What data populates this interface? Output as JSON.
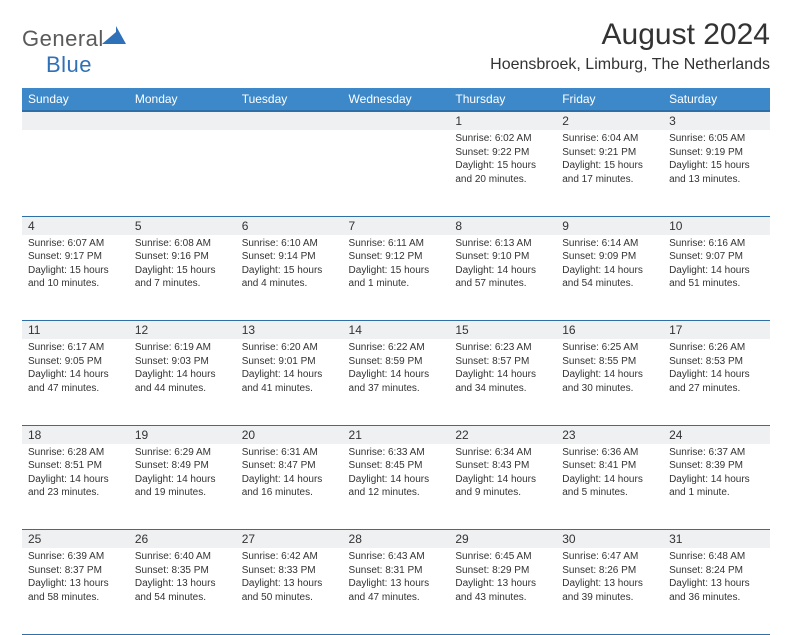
{
  "brand": {
    "part1": "General",
    "part2": "Blue"
  },
  "title": "August 2024",
  "location": "Hoensbroek, Limburg, The Netherlands",
  "colors": {
    "header_bg": "#3d88c9",
    "header_border": "#2f6fa8",
    "row_border": "#2f6fa8",
    "daynum_bg": "#eef0f2",
    "text": "#333333",
    "brand_gray": "#5a5a5a",
    "brand_blue": "#2f71b8",
    "background": "#ffffff"
  },
  "typography": {
    "title_fontsize": 30,
    "location_fontsize": 16,
    "header_fontsize": 12,
    "daynum_fontsize": 12,
    "details_fontsize": 10
  },
  "day_headers": [
    "Sunday",
    "Monday",
    "Tuesday",
    "Wednesday",
    "Thursday",
    "Friday",
    "Saturday"
  ],
  "weeks": [
    [
      {
        "n": "",
        "sunrise": "",
        "sunset": "",
        "daylight": ""
      },
      {
        "n": "",
        "sunrise": "",
        "sunset": "",
        "daylight": ""
      },
      {
        "n": "",
        "sunrise": "",
        "sunset": "",
        "daylight": ""
      },
      {
        "n": "",
        "sunrise": "",
        "sunset": "",
        "daylight": ""
      },
      {
        "n": "1",
        "sunrise": "Sunrise: 6:02 AM",
        "sunset": "Sunset: 9:22 PM",
        "daylight": "Daylight: 15 hours and 20 minutes."
      },
      {
        "n": "2",
        "sunrise": "Sunrise: 6:04 AM",
        "sunset": "Sunset: 9:21 PM",
        "daylight": "Daylight: 15 hours and 17 minutes."
      },
      {
        "n": "3",
        "sunrise": "Sunrise: 6:05 AM",
        "sunset": "Sunset: 9:19 PM",
        "daylight": "Daylight: 15 hours and 13 minutes."
      }
    ],
    [
      {
        "n": "4",
        "sunrise": "Sunrise: 6:07 AM",
        "sunset": "Sunset: 9:17 PM",
        "daylight": "Daylight: 15 hours and 10 minutes."
      },
      {
        "n": "5",
        "sunrise": "Sunrise: 6:08 AM",
        "sunset": "Sunset: 9:16 PM",
        "daylight": "Daylight: 15 hours and 7 minutes."
      },
      {
        "n": "6",
        "sunrise": "Sunrise: 6:10 AM",
        "sunset": "Sunset: 9:14 PM",
        "daylight": "Daylight: 15 hours and 4 minutes."
      },
      {
        "n": "7",
        "sunrise": "Sunrise: 6:11 AM",
        "sunset": "Sunset: 9:12 PM",
        "daylight": "Daylight: 15 hours and 1 minute."
      },
      {
        "n": "8",
        "sunrise": "Sunrise: 6:13 AM",
        "sunset": "Sunset: 9:10 PM",
        "daylight": "Daylight: 14 hours and 57 minutes."
      },
      {
        "n": "9",
        "sunrise": "Sunrise: 6:14 AM",
        "sunset": "Sunset: 9:09 PM",
        "daylight": "Daylight: 14 hours and 54 minutes."
      },
      {
        "n": "10",
        "sunrise": "Sunrise: 6:16 AM",
        "sunset": "Sunset: 9:07 PM",
        "daylight": "Daylight: 14 hours and 51 minutes."
      }
    ],
    [
      {
        "n": "11",
        "sunrise": "Sunrise: 6:17 AM",
        "sunset": "Sunset: 9:05 PM",
        "daylight": "Daylight: 14 hours and 47 minutes."
      },
      {
        "n": "12",
        "sunrise": "Sunrise: 6:19 AM",
        "sunset": "Sunset: 9:03 PM",
        "daylight": "Daylight: 14 hours and 44 minutes."
      },
      {
        "n": "13",
        "sunrise": "Sunrise: 6:20 AM",
        "sunset": "Sunset: 9:01 PM",
        "daylight": "Daylight: 14 hours and 41 minutes."
      },
      {
        "n": "14",
        "sunrise": "Sunrise: 6:22 AM",
        "sunset": "Sunset: 8:59 PM",
        "daylight": "Daylight: 14 hours and 37 minutes."
      },
      {
        "n": "15",
        "sunrise": "Sunrise: 6:23 AM",
        "sunset": "Sunset: 8:57 PM",
        "daylight": "Daylight: 14 hours and 34 minutes."
      },
      {
        "n": "16",
        "sunrise": "Sunrise: 6:25 AM",
        "sunset": "Sunset: 8:55 PM",
        "daylight": "Daylight: 14 hours and 30 minutes."
      },
      {
        "n": "17",
        "sunrise": "Sunrise: 6:26 AM",
        "sunset": "Sunset: 8:53 PM",
        "daylight": "Daylight: 14 hours and 27 minutes."
      }
    ],
    [
      {
        "n": "18",
        "sunrise": "Sunrise: 6:28 AM",
        "sunset": "Sunset: 8:51 PM",
        "daylight": "Daylight: 14 hours and 23 minutes."
      },
      {
        "n": "19",
        "sunrise": "Sunrise: 6:29 AM",
        "sunset": "Sunset: 8:49 PM",
        "daylight": "Daylight: 14 hours and 19 minutes."
      },
      {
        "n": "20",
        "sunrise": "Sunrise: 6:31 AM",
        "sunset": "Sunset: 8:47 PM",
        "daylight": "Daylight: 14 hours and 16 minutes."
      },
      {
        "n": "21",
        "sunrise": "Sunrise: 6:33 AM",
        "sunset": "Sunset: 8:45 PM",
        "daylight": "Daylight: 14 hours and 12 minutes."
      },
      {
        "n": "22",
        "sunrise": "Sunrise: 6:34 AM",
        "sunset": "Sunset: 8:43 PM",
        "daylight": "Daylight: 14 hours and 9 minutes."
      },
      {
        "n": "23",
        "sunrise": "Sunrise: 6:36 AM",
        "sunset": "Sunset: 8:41 PM",
        "daylight": "Daylight: 14 hours and 5 minutes."
      },
      {
        "n": "24",
        "sunrise": "Sunrise: 6:37 AM",
        "sunset": "Sunset: 8:39 PM",
        "daylight": "Daylight: 14 hours and 1 minute."
      }
    ],
    [
      {
        "n": "25",
        "sunrise": "Sunrise: 6:39 AM",
        "sunset": "Sunset: 8:37 PM",
        "daylight": "Daylight: 13 hours and 58 minutes."
      },
      {
        "n": "26",
        "sunrise": "Sunrise: 6:40 AM",
        "sunset": "Sunset: 8:35 PM",
        "daylight": "Daylight: 13 hours and 54 minutes."
      },
      {
        "n": "27",
        "sunrise": "Sunrise: 6:42 AM",
        "sunset": "Sunset: 8:33 PM",
        "daylight": "Daylight: 13 hours and 50 minutes."
      },
      {
        "n": "28",
        "sunrise": "Sunrise: 6:43 AM",
        "sunset": "Sunset: 8:31 PM",
        "daylight": "Daylight: 13 hours and 47 minutes."
      },
      {
        "n": "29",
        "sunrise": "Sunrise: 6:45 AM",
        "sunset": "Sunset: 8:29 PM",
        "daylight": "Daylight: 13 hours and 43 minutes."
      },
      {
        "n": "30",
        "sunrise": "Sunrise: 6:47 AM",
        "sunset": "Sunset: 8:26 PM",
        "daylight": "Daylight: 13 hours and 39 minutes."
      },
      {
        "n": "31",
        "sunrise": "Sunrise: 6:48 AM",
        "sunset": "Sunset: 8:24 PM",
        "daylight": "Daylight: 13 hours and 36 minutes."
      }
    ]
  ]
}
